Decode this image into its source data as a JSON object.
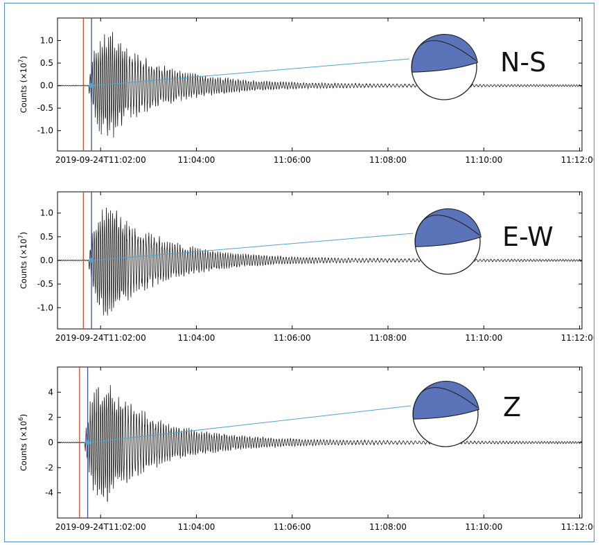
{
  "chart_data": [
    {
      "type": "line",
      "component": "N-S",
      "ylabel": "Counts (×10⁷)",
      "ylabel_base": "Counts (",
      "ylabel_exp": "7",
      "y_ticks": [
        "1.0",
        "0.5",
        "0.0",
        "-0.5",
        "-1.0"
      ],
      "y_tick_values": [
        1.0,
        0.5,
        0.0,
        -0.5,
        -1.0
      ],
      "ylim": [
        -1.45,
        1.5
      ],
      "x_tick_labels": [
        "2019-09-24T11:02:00",
        "11:04:00",
        "11:06:00",
        "11:08:00",
        "11:10:00",
        "11:12:00"
      ],
      "x_tick_minutes": [
        0,
        2,
        4,
        6,
        8,
        10
      ],
      "xlim_minutes": [
        -0.9,
        10.05
      ],
      "peak_amplitude": 1.3,
      "red_marker_minute": -0.36,
      "blue_marker_minute": -0.19,
      "beachball_fill": "#5b73b8"
    },
    {
      "type": "line",
      "component": "E-W",
      "ylabel": "Counts (×10⁷)",
      "ylabel_base": "Counts (",
      "ylabel_exp": "7",
      "y_ticks": [
        "1.0",
        "0.5",
        "0.0",
        "-0.5",
        "-1.0"
      ],
      "y_tick_values": [
        1.0,
        0.5,
        0.0,
        -0.5,
        -1.0
      ],
      "ylim": [
        -1.45,
        1.45
      ],
      "x_tick_labels": [
        "2019-09-24T11:02:00",
        "11:04:00",
        "11:06:00",
        "11:08:00",
        "11:10:00",
        "11:12:00"
      ],
      "x_tick_minutes": [
        0,
        2,
        4,
        6,
        8,
        10
      ],
      "xlim_minutes": [
        -0.9,
        10.05
      ],
      "peak_amplitude": 1.35,
      "red_marker_minute": -0.36,
      "blue_marker_minute": -0.19,
      "beachball_fill": "#5b73b8"
    },
    {
      "type": "line",
      "component": "Z",
      "ylabel": "Counts (×10⁶)",
      "ylabel_base": "Counts (",
      "ylabel_exp": "6",
      "y_ticks": [
        "4",
        "2",
        "0",
        "-2",
        "-4"
      ],
      "y_tick_values": [
        4,
        2,
        0,
        -2,
        -4
      ],
      "ylim": [
        -6,
        6
      ],
      "x_tick_labels": [
        "2019-09-24T11:02:00",
        "11:04:00",
        "11:06:00",
        "11:08:00",
        "11:10:00",
        "11:12:00"
      ],
      "x_tick_minutes": [
        0,
        2,
        4,
        6,
        8,
        10
      ],
      "xlim_minutes": [
        -0.9,
        10.05
      ],
      "peak_amplitude": 5.4,
      "red_marker_minute": -0.44,
      "blue_marker_minute": -0.27,
      "beachball_fill": "#5b73b8"
    }
  ]
}
